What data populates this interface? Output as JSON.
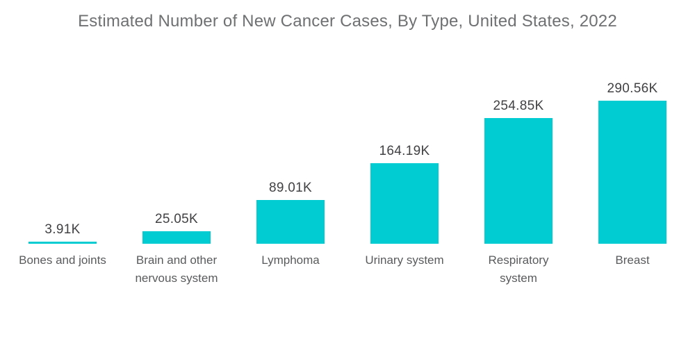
{
  "page": {
    "background": "#ffffff"
  },
  "chart_data": {
    "type": "bar",
    "title": "Estimated Number of New Cancer Cases, By Type, United States, 2022",
    "orientation": "vertical",
    "categories": [
      "Bones and joints",
      "Brain and other\nnervous system",
      "Lymphoma",
      "Urinary system",
      "Respiratory\nsystem",
      "Breast"
    ],
    "values": [
      3.91,
      25.05,
      89.01,
      164.19,
      254.85,
      290.56
    ],
    "value_labels": [
      "3.91K",
      "25.05K",
      "89.01K",
      "164.19K",
      "254.85K",
      "290.56K"
    ],
    "unit": "K cases",
    "xlabel": "",
    "ylabel": "",
    "ylim": [
      0,
      300
    ],
    "grid": false,
    "legend": false,
    "axes_visible": false,
    "value_label_position": "above-bar",
    "bar_color": "#00ccd2"
  },
  "styles": {
    "title_color": "#6f7072",
    "value_label_color": "#414144",
    "category_label_color": "#595a5c"
  }
}
